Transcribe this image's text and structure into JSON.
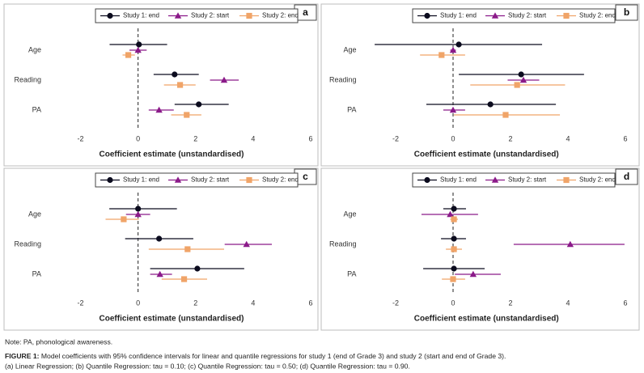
{
  "chart_data": [
    {
      "type": "forest",
      "panel_label": "a",
      "categories": [
        "Age",
        "Reading",
        "PA"
      ],
      "xlabel": "Coefficient estimate (unstandardised)",
      "xlim": [
        -3,
        6
      ],
      "xticks": [
        -2,
        0,
        2,
        4,
        6
      ],
      "series": [
        {
          "name": "Study 1: end",
          "color": "#0b0b1e",
          "marker": "circle",
          "values": [
            0.03,
            1.27,
            2.11
          ],
          "ci_low": [
            -0.99,
            0.54,
            1.27
          ],
          "ci_high": [
            1.01,
            2.11,
            3.15
          ]
        },
        {
          "name": "Study 2: start",
          "color": "#8b1a89",
          "marker": "triangle",
          "values": [
            0.0,
            2.99,
            0.73
          ],
          "ci_low": [
            -0.3,
            2.5,
            0.37
          ],
          "ci_high": [
            0.3,
            3.5,
            1.24
          ]
        },
        {
          "name": "Study 2: end",
          "color": "#f0a468",
          "marker": "square",
          "values": [
            -0.34,
            1.46,
            1.69
          ],
          "ci_low": [
            -0.54,
            0.9,
            1.15
          ],
          "ci_high": [
            -0.11,
            2.0,
            2.2
          ]
        }
      ]
    },
    {
      "type": "forest",
      "panel_label": "b",
      "categories": [
        "Age",
        "Reading",
        "PA"
      ],
      "xlabel": "Coefficient estimate (unstandardised)",
      "xlim": [
        -3,
        6
      ],
      "xticks": [
        -2,
        0,
        2,
        4,
        6
      ],
      "series": [
        {
          "name": "Study 1: end",
          "color": "#0b0b1e",
          "marker": "circle",
          "values": [
            0.2,
            2.37,
            1.3
          ],
          "ci_low": [
            -2.73,
            0.2,
            -0.93
          ],
          "ci_high": [
            3.1,
            4.56,
            3.58
          ]
        },
        {
          "name": "Study 2: start",
          "color": "#8b1a89",
          "marker": "triangle",
          "values": [
            0.0,
            2.45,
            0.0
          ],
          "ci_low": [
            -0.1,
            1.9,
            -0.34
          ],
          "ci_high": [
            0.1,
            3.0,
            0.42
          ]
        },
        {
          "name": "Study 2: end",
          "color": "#f0a468",
          "marker": "square",
          "values": [
            -0.4,
            2.23,
            1.83
          ],
          "ci_low": [
            -1.15,
            0.6,
            0.03
          ],
          "ci_high": [
            0.42,
            3.9,
            3.72
          ]
        }
      ]
    },
    {
      "type": "forest",
      "panel_label": "c",
      "categories": [
        "Age",
        "Reading",
        "PA"
      ],
      "xlabel": "Coefficient estimate (unstandardised)",
      "xlim": [
        -3,
        6
      ],
      "xticks": [
        -2,
        0,
        2,
        4,
        6
      ],
      "series": [
        {
          "name": "Study 1: end",
          "color": "#0b0b1e",
          "marker": "circle",
          "values": [
            0.0,
            0.73,
            2.06
          ],
          "ci_low": [
            -1.0,
            -0.45,
            0.42
          ],
          "ci_high": [
            1.35,
            1.92,
            3.69
          ]
        },
        {
          "name": "Study 2: start",
          "color": "#8b1a89",
          "marker": "triangle",
          "values": [
            0.0,
            3.77,
            0.76
          ],
          "ci_low": [
            -0.42,
            3.01,
            0.42
          ],
          "ci_high": [
            0.42,
            4.65,
            1.18
          ]
        },
        {
          "name": "Study 2: end",
          "color": "#f0a468",
          "marker": "square",
          "values": [
            -0.5,
            1.72,
            1.6
          ],
          "ci_low": [
            -1.13,
            0.37,
            0.82
          ],
          "ci_high": [
            0.03,
            2.99,
            2.4
          ]
        }
      ]
    },
    {
      "type": "forest",
      "panel_label": "d",
      "categories": [
        "Age",
        "Reading",
        "PA"
      ],
      "xlabel": "Coefficient estimate (unstandardised)",
      "xlim": [
        -3,
        6
      ],
      "xticks": [
        -2,
        0,
        2,
        4,
        6
      ],
      "series": [
        {
          "name": "Study 1: end",
          "color": "#0b0b1e",
          "marker": "circle",
          "values": [
            0.03,
            0.03,
            0.03
          ],
          "ci_low": [
            -0.34,
            -0.42,
            -1.04
          ],
          "ci_high": [
            0.45,
            0.45,
            1.1
          ]
        },
        {
          "name": "Study 2: start",
          "color": "#8b1a89",
          "marker": "triangle",
          "values": [
            -0.1,
            4.08,
            0.7
          ],
          "ci_low": [
            -1.1,
            2.11,
            0.06
          ],
          "ci_high": [
            0.87,
            5.97,
            1.66
          ]
        },
        {
          "name": "Study 2: end",
          "color": "#f0a468",
          "marker": "square",
          "values": [
            0.03,
            0.03,
            0.0
          ],
          "ci_low": [
            -0.1,
            -0.25,
            -0.39
          ],
          "ci_high": [
            0.17,
            0.31,
            0.42
          ]
        }
      ]
    }
  ],
  "note": "Note: PA, phonological awareness.",
  "caption": {
    "label": "FIGURE 1:",
    "text": "Model coefficients with 95% confidence intervals for linear and quantile regressions for study 1 (end of Grade 3) and study 2 (start and end of Grade 3).",
    "panels": "(a) Linear Regression; (b) Quantile Regression: tau = 0.10; (c) Quantile Regression: tau = 0.50; (d) Quantile Regression: tau = 0.90."
  }
}
